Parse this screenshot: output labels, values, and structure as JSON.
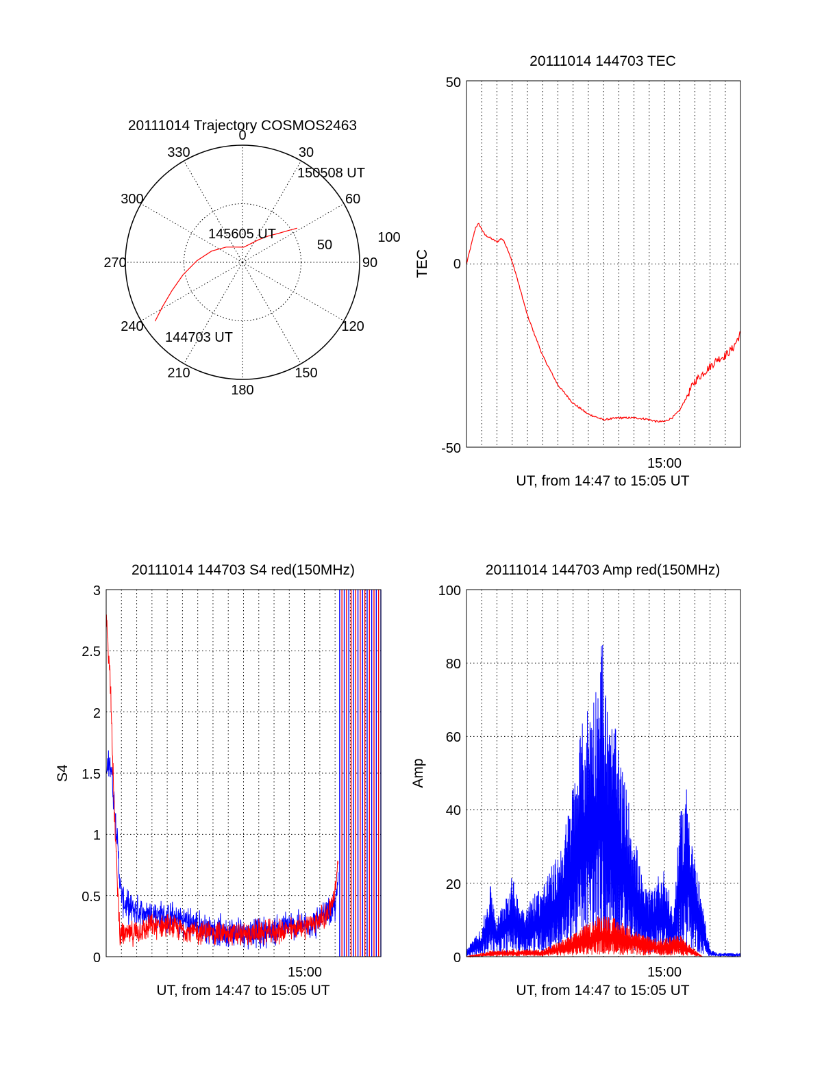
{
  "chart_data": [
    {
      "type": "polar-trajectory",
      "title": "20111014 Trajectory COSMOS2463",
      "azimuth_labels": [
        "0",
        "30",
        "60",
        "90",
        "120",
        "150",
        "180",
        "210",
        "240",
        "270",
        "300",
        "330"
      ],
      "radial_labels": [
        "50",
        "100"
      ],
      "rlim": [
        0,
        100
      ],
      "grid": true,
      "series": [
        {
          "color": "#ff0000",
          "points": [
            [
              236,
              90
            ],
            [
              241,
              78
            ],
            [
              248,
              65
            ],
            [
              258,
              52
            ],
            [
              272,
              39
            ],
            [
              290,
              28
            ],
            [
              313,
              19
            ],
            [
              338,
              14
            ],
            [
              5,
              13
            ],
            [
              23,
              17
            ],
            [
              36,
              24
            ],
            [
              45,
              32
            ],
            [
              51,
              39
            ],
            [
              55,
              47
            ],
            [
              58,
              55
            ]
          ]
        }
      ],
      "annotations": [
        {
          "text": "150508 UT"
        },
        {
          "text": "145605 UT"
        },
        {
          "text": "144703 UT"
        }
      ]
    },
    {
      "type": "line",
      "title": "20111014 144703 TEC",
      "xlabel": "UT, from 14:47 to 15:05 UT",
      "ylabel": "TEC",
      "xlim_minutes_after_1447": [
        0,
        18
      ],
      "ylim": [
        -50,
        50
      ],
      "yticks": [
        "50",
        "0",
        "-50"
      ],
      "xticks": [
        "15:00"
      ],
      "grid": true,
      "series": [
        {
          "color": "#ff0000",
          "x": [
            0,
            0.3,
            0.6,
            0.8,
            1.2,
            1.6,
            2.0,
            2.3,
            2.5,
            2.8,
            3.2,
            4.0,
            5.0,
            6.0,
            7.0,
            8.0,
            9.0,
            10.0,
            11.0,
            11.8,
            12.5,
            13.0,
            13.5,
            14.0,
            14.5,
            15.0,
            15.5,
            16.0,
            16.5,
            17.0,
            17.5,
            18.0
          ],
          "y": [
            0,
            5,
            10,
            11,
            8,
            7,
            6,
            7,
            6,
            3,
            -2,
            -14,
            -25,
            -33,
            -38,
            -41,
            -42.5,
            -42,
            -42,
            -42.3,
            -43,
            -43,
            -42,
            -40,
            -36,
            -32,
            -30,
            -28,
            -26,
            -25,
            -23,
            -19
          ]
        }
      ]
    },
    {
      "type": "line",
      "title": "20111014 144703 S4 red(150MHz)",
      "xlabel": "UT, from 14:47 to 15:05 UT",
      "ylabel": "S4",
      "xlim_minutes_after_1447": [
        0,
        18
      ],
      "ylim": [
        0,
        3
      ],
      "yticks": [
        "0",
        "0.5",
        "1",
        "1.5",
        "2",
        "2.5",
        "3"
      ],
      "xticks": [
        "15:00"
      ],
      "grid": true,
      "series": [
        {
          "color": "#0000ff",
          "noise": 0.05,
          "x": [
            0,
            0.3,
            0.5,
            0.7,
            0.9,
            1.1,
            1.5,
            2.0,
            2.5,
            3.0,
            4.0,
            5.0,
            6.0,
            7.0,
            8.0,
            9.0,
            10.0,
            11.0,
            12.0,
            13.0,
            14.0,
            14.5,
            15.0,
            15.2
          ],
          "y": [
            1.5,
            1.6,
            1.3,
            1.0,
            0.6,
            0.45,
            0.4,
            0.38,
            0.35,
            0.35,
            0.32,
            0.3,
            0.25,
            0.22,
            0.2,
            0.2,
            0.2,
            0.22,
            0.25,
            0.25,
            0.3,
            0.35,
            0.4,
            0.6
          ]
        },
        {
          "color": "#ff0000",
          "noise": 0.04,
          "x": [
            0,
            0.3,
            0.5,
            0.7,
            0.9,
            1.1,
            1.5,
            2.0,
            3.0,
            4.0,
            5.0,
            6.0,
            7.0,
            8.0,
            9.0,
            10.0,
            11.0,
            12.0,
            13.0,
            14.0,
            14.5,
            15.0,
            15.2
          ],
          "y": [
            2.8,
            2.2,
            1.3,
            0.7,
            0.2,
            0.18,
            0.18,
            0.2,
            0.25,
            0.25,
            0.22,
            0.2,
            0.2,
            0.18,
            0.18,
            0.2,
            0.2,
            0.22,
            0.25,
            0.3,
            0.35,
            0.5,
            0.8
          ]
        },
        {
          "color": "#0000ff",
          "style": "spikes",
          "x": [
            15.3,
            15.6,
            15.9,
            16.2,
            16.5,
            16.8,
            17.1,
            17.4,
            17.7,
            18.0
          ]
        },
        {
          "color": "#ff0000",
          "style": "spikes",
          "x": [
            15.45,
            15.75,
            16.05,
            16.35,
            16.65,
            16.95,
            17.25,
            17.55,
            17.85
          ]
        }
      ]
    },
    {
      "type": "line",
      "title": "20111014 144703 Amp red(150MHz)",
      "xlabel": "UT, from 14:47 to 15:05 UT",
      "ylabel": "Amp",
      "xlim_minutes_after_1447": [
        0,
        18
      ],
      "ylim": [
        0,
        100
      ],
      "yticks": [
        "0",
        "20",
        "40",
        "60",
        "80",
        "100"
      ],
      "xticks": [
        "15:00"
      ],
      "grid": true,
      "series": [
        {
          "color": "#0000ff",
          "style": "envelope",
          "x": [
            0,
            1,
            1.6,
            2,
            2.6,
            3,
            3.5,
            4,
            4.5,
            5,
            5.5,
            6,
            6.5,
            7,
            7.5,
            8,
            8.5,
            8.9,
            9.3,
            9.8,
            10.3,
            10.8,
            11.2,
            11.6,
            12,
            12.5,
            13,
            13.3,
            13.6,
            14,
            14.5,
            15,
            15.5,
            16,
            16.5,
            17,
            18
          ],
          "y": [
            2,
            8,
            20,
            10,
            18,
            22,
            15,
            14,
            18,
            20,
            24,
            28,
            36,
            48,
            62,
            70,
            75,
            90,
            66,
            62,
            50,
            40,
            30,
            20,
            18,
            22,
            24,
            18,
            12,
            38,
            48,
            28,
            14,
            2,
            1,
            1,
            1
          ]
        },
        {
          "color": "#ff0000",
          "style": "envelope",
          "x": [
            0,
            1,
            2,
            3,
            4,
            5,
            6,
            6.5,
            7,
            7.5,
            8,
            8.5,
            9,
            9.5,
            10,
            10.5,
            11,
            11.5,
            12,
            12.5,
            13,
            13.5,
            14,
            14.5,
            15,
            15.5,
            16,
            18
          ],
          "y": [
            0,
            1,
            2,
            2,
            2,
            2,
            4,
            5,
            6,
            8,
            9,
            11,
            12,
            11,
            10,
            9,
            8,
            6,
            6,
            5,
            5,
            6,
            6,
            4,
            2,
            0,
            0,
            0
          ]
        }
      ]
    }
  ]
}
